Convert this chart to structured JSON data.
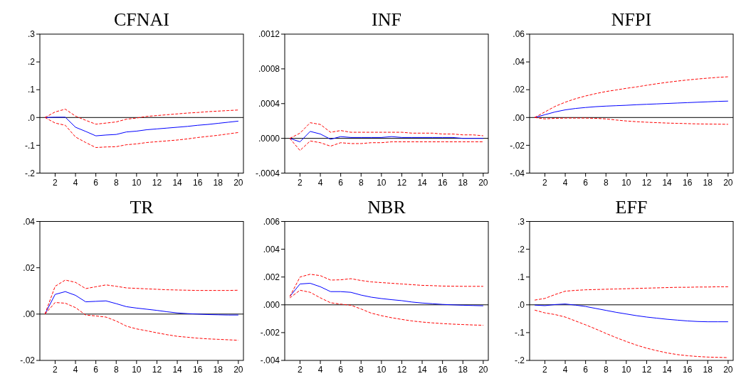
{
  "chart_data": [
    {
      "type": "line",
      "title": "CFNAI",
      "x": [
        1,
        2,
        3,
        4,
        5,
        6,
        7,
        8,
        9,
        10,
        11,
        12,
        13,
        14,
        15,
        16,
        17,
        18,
        19,
        20
      ],
      "xlim": [
        0.5,
        20.5
      ],
      "xticks": [
        2,
        4,
        6,
        8,
        10,
        12,
        14,
        16,
        18,
        20
      ],
      "ylim": [
        -0.2,
        0.3
      ],
      "yticks": [
        {
          "value": -0.2,
          "label": "-.2"
        },
        {
          "value": -0.1,
          "label": "-.1"
        },
        {
          "value": 0,
          "label": ".0"
        },
        {
          "value": 0.1,
          "label": ".1"
        },
        {
          "value": 0.2,
          "label": ".2"
        },
        {
          "value": 0.3,
          "label": ".3"
        }
      ],
      "ref_lines": [
        {
          "axis": "y",
          "value": 0,
          "color": "#000000"
        }
      ],
      "series": [
        {
          "color": "#0000ff",
          "line_style": "solid",
          "values": [
            0,
            0.001,
            0.001,
            -0.035,
            -0.05,
            -0.066,
            -0.063,
            -0.061,
            -0.052,
            -0.049,
            -0.044,
            -0.041,
            -0.038,
            -0.035,
            -0.032,
            -0.028,
            -0.025,
            -0.021,
            -0.017,
            -0.013
          ]
        },
        {
          "color": "#ff0000",
          "line_style": "dashed",
          "values": [
            0,
            0.02,
            0.03,
            0.005,
            -0.01,
            -0.024,
            -0.02,
            -0.016,
            -0.006,
            -0.002,
            0.004,
            0.007,
            0.01,
            0.013,
            0.016,
            0.018,
            0.021,
            0.023,
            0.025,
            0.027
          ]
        },
        {
          "color": "#ff0000",
          "line_style": "dashed",
          "values": [
            0,
            -0.02,
            -0.028,
            -0.07,
            -0.09,
            -0.108,
            -0.106,
            -0.105,
            -0.098,
            -0.095,
            -0.09,
            -0.087,
            -0.084,
            -0.081,
            -0.077,
            -0.072,
            -0.068,
            -0.064,
            -0.059,
            -0.054
          ]
        }
      ]
    },
    {
      "type": "line",
      "title": "INF",
      "x": [
        1,
        2,
        3,
        4,
        5,
        6,
        7,
        8,
        9,
        10,
        11,
        12,
        13,
        14,
        15,
        16,
        17,
        18,
        19,
        20
      ],
      "xlim": [
        0.5,
        20.5
      ],
      "xticks": [
        2,
        4,
        6,
        8,
        10,
        12,
        14,
        16,
        18,
        20
      ],
      "ylim": [
        -0.0004,
        0.0012
      ],
      "yticks": [
        {
          "value": -0.0004,
          "label": "-.0004"
        },
        {
          "value": 0,
          "label": ".0000"
        },
        {
          "value": 0.0004,
          "label": ".0004"
        },
        {
          "value": 0.0008,
          "label": ".0008"
        },
        {
          "value": 0.0012,
          "label": ".0012"
        }
      ],
      "ref_lines": [
        {
          "axis": "y",
          "value": 0,
          "color": "#000000"
        }
      ],
      "series": [
        {
          "color": "#0000ff",
          "line_style": "solid",
          "values": [
            0,
            -4e-05,
            8e-05,
            5e-05,
            -1e-05,
            2e-05,
            1e-05,
            1e-05,
            1e-05,
            1e-05,
            2e-05,
            1e-05,
            1e-05,
            1e-05,
            1e-05,
            1e-05,
            1e-05,
            0,
            0,
            0
          ]
        },
        {
          "color": "#ff0000",
          "line_style": "dashed",
          "values": [
            0,
            6e-05,
            0.00018,
            0.00016,
            7e-05,
            9e-05,
            7e-05,
            7e-05,
            7e-05,
            7e-05,
            7e-05,
            7e-05,
            6e-05,
            6e-05,
            6e-05,
            5e-05,
            5e-05,
            4e-05,
            4e-05,
            3e-05
          ]
        },
        {
          "color": "#ff0000",
          "line_style": "dashed",
          "values": [
            0,
            -0.00014,
            -3e-05,
            -5e-05,
            -9e-05,
            -5e-05,
            -6e-05,
            -6e-05,
            -5e-05,
            -5e-05,
            -4e-05,
            -4e-05,
            -4e-05,
            -4e-05,
            -4e-05,
            -4e-05,
            -4e-05,
            -4e-05,
            -4e-05,
            -4e-05
          ]
        }
      ]
    },
    {
      "type": "line",
      "title": "NFPI",
      "x": [
        1,
        2,
        3,
        4,
        5,
        6,
        7,
        8,
        9,
        10,
        11,
        12,
        13,
        14,
        15,
        16,
        17,
        18,
        19,
        20
      ],
      "xlim": [
        0.5,
        20.5
      ],
      "xticks": [
        2,
        4,
        6,
        8,
        10,
        12,
        14,
        16,
        18,
        20
      ],
      "ylim": [
        -0.04,
        0.06
      ],
      "yticks": [
        {
          "value": -0.04,
          "label": "-.04"
        },
        {
          "value": -0.02,
          "label": "-.02"
        },
        {
          "value": 0,
          "label": ".00"
        },
        {
          "value": 0.02,
          "label": ".02"
        },
        {
          "value": 0.04,
          "label": ".04"
        },
        {
          "value": 0.06,
          "label": ".06"
        }
      ],
      "ref_lines": [
        {
          "axis": "y",
          "value": 0,
          "color": "#000000"
        }
      ],
      "series": [
        {
          "color": "#0000ff",
          "line_style": "solid",
          "values": [
            0,
            0.002,
            0.004,
            0.0055,
            0.0065,
            0.0072,
            0.0078,
            0.0082,
            0.0085,
            0.0088,
            0.0092,
            0.0095,
            0.0098,
            0.0101,
            0.0104,
            0.0107,
            0.011,
            0.0113,
            0.0116,
            0.0118
          ]
        },
        {
          "color": "#ff0000",
          "line_style": "dashed",
          "values": [
            0,
            0.004,
            0.008,
            0.011,
            0.0135,
            0.0155,
            0.0172,
            0.0187,
            0.0198,
            0.021,
            0.022,
            0.0232,
            0.0243,
            0.0253,
            0.0262,
            0.027,
            0.0277,
            0.0283,
            0.0289,
            0.0293
          ]
        },
        {
          "color": "#ff0000",
          "line_style": "dashed",
          "values": [
            0,
            -0.001,
            -0.0006,
            -0.0004,
            -0.0004,
            -0.0004,
            -0.0006,
            -0.001,
            -0.0018,
            -0.0025,
            -0.003,
            -0.0034,
            -0.0037,
            -0.004,
            -0.0042,
            -0.0044,
            -0.0046,
            -0.0047,
            -0.0048,
            -0.0049
          ]
        }
      ]
    },
    {
      "type": "line",
      "title": "TR",
      "x": [
        1,
        2,
        3,
        4,
        5,
        6,
        7,
        8,
        9,
        10,
        11,
        12,
        13,
        14,
        15,
        16,
        17,
        18,
        19,
        20
      ],
      "xlim": [
        0.5,
        20.5
      ],
      "xticks": [
        2,
        4,
        6,
        8,
        10,
        12,
        14,
        16,
        18,
        20
      ],
      "ylim": [
        -0.02,
        0.04
      ],
      "yticks": [
        {
          "value": -0.02,
          "label": "-.02"
        },
        {
          "value": 0,
          "label": ".00"
        },
        {
          "value": 0.02,
          "label": ".02"
        },
        {
          "value": 0.04,
          "label": ".04"
        }
      ],
      "ref_lines": [
        {
          "axis": "y",
          "value": 0,
          "color": "#000000"
        }
      ],
      "series": [
        {
          "color": "#0000ff",
          "line_style": "solid",
          "values": [
            0,
            0.0085,
            0.0097,
            0.0081,
            0.0053,
            0.0055,
            0.0057,
            0.0045,
            0.0032,
            0.0026,
            0.0021,
            0.0016,
            0.001,
            0.0005,
            0.0002,
            0,
            -0.0002,
            -0.0003,
            -0.0004,
            -0.0004
          ]
        },
        {
          "color": "#ff0000",
          "line_style": "dashed",
          "values": [
            0,
            0.012,
            0.0147,
            0.0137,
            0.011,
            0.0118,
            0.0126,
            0.012,
            0.0113,
            0.0111,
            0.0109,
            0.0107,
            0.0105,
            0.0104,
            0.0103,
            0.0102,
            0.0102,
            0.0102,
            0.0102,
            0.0103
          ]
        },
        {
          "color": "#ff0000",
          "line_style": "dashed",
          "values": [
            0,
            0.005,
            0.0047,
            0.0028,
            -0.0004,
            -0.0008,
            -0.0013,
            -0.003,
            -0.0052,
            -0.0064,
            -0.0072,
            -0.0081,
            -0.0089,
            -0.0096,
            -0.01,
            -0.0104,
            -0.0107,
            -0.0109,
            -0.0111,
            -0.0113
          ]
        }
      ]
    },
    {
      "type": "line",
      "title": "NBR",
      "x": [
        1,
        2,
        3,
        4,
        5,
        6,
        7,
        8,
        9,
        10,
        11,
        12,
        13,
        14,
        15,
        16,
        17,
        18,
        19,
        20
      ],
      "xlim": [
        0.5,
        20.5
      ],
      "xticks": [
        2,
        4,
        6,
        8,
        10,
        12,
        14,
        16,
        18,
        20
      ],
      "ylim": [
        -0.004,
        0.006
      ],
      "yticks": [
        {
          "value": -0.004,
          "label": "-.004"
        },
        {
          "value": -0.002,
          "label": "-.002"
        },
        {
          "value": 0,
          "label": ".000"
        },
        {
          "value": 0.002,
          "label": ".002"
        },
        {
          "value": 0.004,
          "label": ".004"
        },
        {
          "value": 0.006,
          "label": ".006"
        }
      ],
      "ref_lines": [
        {
          "axis": "y",
          "value": 0,
          "color": "#000000"
        }
      ],
      "series": [
        {
          "color": "#0000ff",
          "line_style": "solid",
          "values": [
            0.0006,
            0.0015,
            0.00155,
            0.0013,
            0.00095,
            0.00095,
            0.0009,
            0.0007,
            0.00055,
            0.00045,
            0.00037,
            0.0003,
            0.0002,
            0.00013,
            8e-05,
            3e-05,
            0,
            -3e-05,
            -5e-05,
            -7e-05
          ]
        },
        {
          "color": "#ff0000",
          "line_style": "dashed",
          "values": [
            0.0006,
            0.002,
            0.0022,
            0.0021,
            0.00178,
            0.0018,
            0.00188,
            0.00175,
            0.00165,
            0.0016,
            0.00155,
            0.0015,
            0.00145,
            0.0014,
            0.00138,
            0.00135,
            0.00134,
            0.00133,
            0.00133,
            0.00133
          ]
        },
        {
          "color": "#ff0000",
          "line_style": "dashed",
          "values": [
            0.0005,
            0.00105,
            0.0009,
            0.0005,
            0.00015,
            5e-05,
            -3e-05,
            -0.0003,
            -0.0006,
            -0.00078,
            -0.00093,
            -0.00105,
            -0.00116,
            -0.00124,
            -0.0013,
            -0.00135,
            -0.00139,
            -0.00142,
            -0.00145,
            -0.00147
          ]
        }
      ]
    },
    {
      "type": "line",
      "title": "EFF",
      "x": [
        1,
        2,
        3,
        4,
        5,
        6,
        7,
        8,
        9,
        10,
        11,
        12,
        13,
        14,
        15,
        16,
        17,
        18,
        19,
        20
      ],
      "xlim": [
        0.5,
        20.5
      ],
      "xticks": [
        2,
        4,
        6,
        8,
        10,
        12,
        14,
        16,
        18,
        20
      ],
      "ylim": [
        -0.2,
        0.3
      ],
      "yticks": [
        {
          "value": -0.2,
          "label": "-.2"
        },
        {
          "value": -0.1,
          "label": "-.1"
        },
        {
          "value": 0,
          "label": ".0"
        },
        {
          "value": 0.1,
          "label": ".1"
        },
        {
          "value": 0.2,
          "label": ".2"
        },
        {
          "value": 0.3,
          "label": ".3"
        }
      ],
      "ref_lines": [
        {
          "axis": "y",
          "value": 0,
          "color": "#000000"
        }
      ],
      "series": [
        {
          "color": "#0000ff",
          "line_style": "solid",
          "values": [
            -0.001,
            -0.003,
            0.001,
            0.003,
            -0.001,
            -0.006,
            -0.013,
            -0.02,
            -0.027,
            -0.033,
            -0.039,
            -0.044,
            -0.048,
            -0.052,
            -0.055,
            -0.058,
            -0.06,
            -0.061,
            -0.061,
            -0.061
          ]
        },
        {
          "color": "#ff0000",
          "line_style": "dashed",
          "values": [
            0.017,
            0.023,
            0.037,
            0.049,
            0.052,
            0.054,
            0.055,
            0.056,
            0.057,
            0.058,
            0.059,
            0.06,
            0.061,
            0.062,
            0.063,
            0.063,
            0.064,
            0.064,
            0.065,
            0.065
          ]
        },
        {
          "color": "#ff0000",
          "line_style": "dashed",
          "values": [
            -0.019,
            -0.029,
            -0.035,
            -0.044,
            -0.058,
            -0.072,
            -0.087,
            -0.103,
            -0.118,
            -0.132,
            -0.145,
            -0.156,
            -0.165,
            -0.173,
            -0.179,
            -0.183,
            -0.186,
            -0.188,
            -0.189,
            -0.19
          ]
        }
      ]
    }
  ]
}
